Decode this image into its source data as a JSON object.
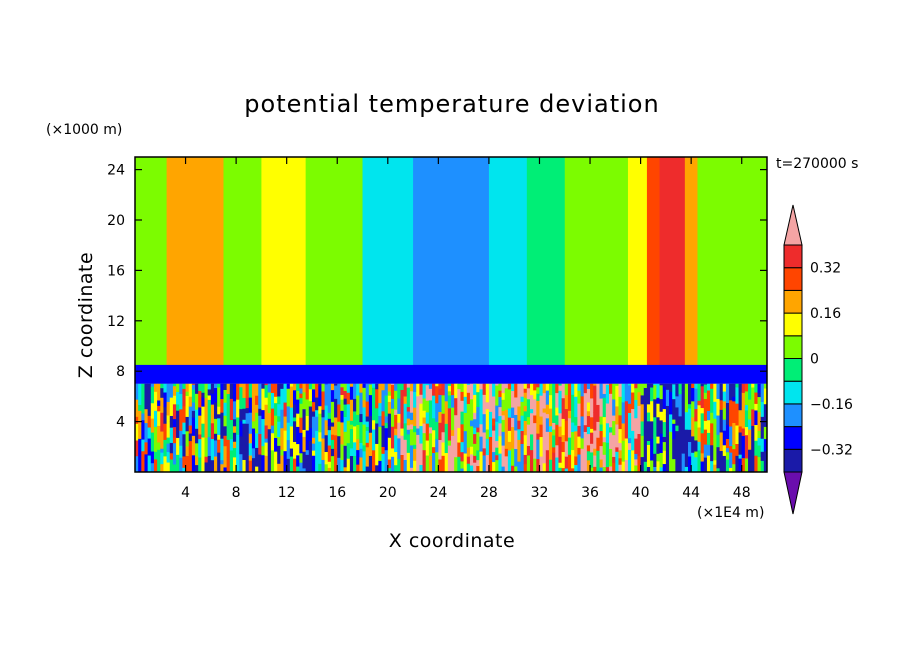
{
  "chart_data": {
    "type": "heatmap",
    "title": "potential temperature deviation",
    "xlabel": "X coordinate",
    "ylabel": "Z coordinate",
    "x_unit": "(×1E4 m)",
    "y_unit": "(×1000 m)",
    "time_label": "t=270000 s",
    "xlim": [
      0,
      50
    ],
    "ylim": [
      0,
      25
    ],
    "x_ticks": [
      "4",
      "8",
      "12",
      "16",
      "20",
      "24",
      "28",
      "32",
      "36",
      "40",
      "44",
      "48"
    ],
    "y_ticks": [
      "4",
      "8",
      "12",
      "16",
      "20",
      "24"
    ],
    "colorbar": {
      "labels": [
        "0.32",
        "0.16",
        "0",
        "−0.16",
        "−0.32"
      ],
      "label_values": [
        0.32,
        0.16,
        0,
        -0.16,
        -0.32
      ],
      "levels": [
        -0.4,
        -0.32,
        -0.24,
        -0.16,
        -0.08,
        0,
        0.08,
        0.16,
        0.24,
        0.32,
        0.4
      ],
      "colors": [
        "#6a0dad",
        "#1a1aa8",
        "#0000ff",
        "#1e90ff",
        "#00e5ee",
        "#00ee76",
        "#7cfc00",
        "#ffff00",
        "#ffa500",
        "#ff4500",
        "#ee2c2c",
        "#f4a4a4"
      ],
      "extend": "both"
    },
    "field": {
      "upper_layer": {
        "z_range": [
          8,
          25
        ],
        "bands": [
          {
            "x": [
              0,
              2.5
            ],
            "value": 0.04
          },
          {
            "x": [
              2.5,
              7
            ],
            "value": 0.18
          },
          {
            "x": [
              7,
              10
            ],
            "value": 0.05
          },
          {
            "x": [
              10,
              13.5
            ],
            "value": 0.1
          },
          {
            "x": [
              13.5,
              18
            ],
            "value": 0.04
          },
          {
            "x": [
              18,
              22
            ],
            "value": -0.1
          },
          {
            "x": [
              22,
              28
            ],
            "value": -0.2
          },
          {
            "x": [
              28,
              31
            ],
            "value": -0.12
          },
          {
            "x": [
              31,
              34
            ],
            "value": -0.05
          },
          {
            "x": [
              34,
              39
            ],
            "value": 0.03
          },
          {
            "x": [
              39,
              40.5
            ],
            "value": 0.1
          },
          {
            "x": [
              40.5,
              41.5
            ],
            "value": 0.25
          },
          {
            "x": [
              41.5,
              43.5
            ],
            "value": 0.35
          },
          {
            "x": [
              43.5,
              44.5
            ],
            "value": 0.2
          },
          {
            "x": [
              44.5,
              50
            ],
            "value": 0.04
          }
        ]
      },
      "boundary_layer": {
        "z_range": [
          7,
          8.5
        ],
        "value": -0.3
      },
      "lower_layer": {
        "z_range": [
          0,
          7
        ],
        "value_range": [
          -0.4,
          0.4
        ]
      }
    }
  }
}
